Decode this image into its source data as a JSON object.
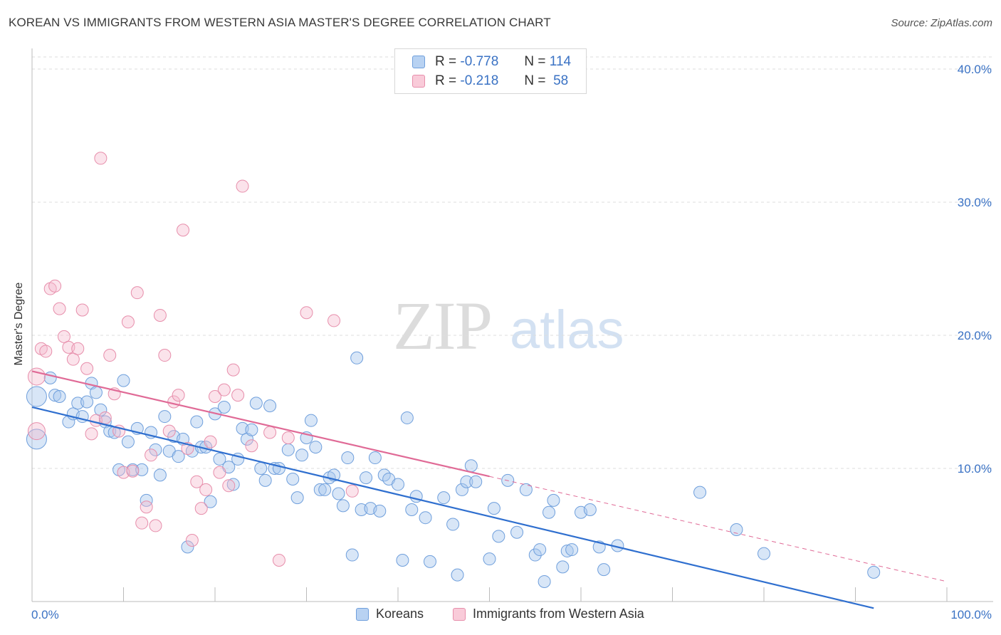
{
  "title": "KOREAN VS IMMIGRANTS FROM WESTERN ASIA MASTER'S DEGREE CORRELATION CHART",
  "source": "Source: ZipAtlas.com",
  "watermark": {
    "zip": "ZIP",
    "atlas": "atlas"
  },
  "legend": {
    "r_label": "R =",
    "n_label": "N =",
    "rows": [
      {
        "r": "-0.778",
        "n": "114"
      },
      {
        "r": "-0.218",
        "n": "58"
      }
    ]
  },
  "chart_data": {
    "type": "scatter",
    "xlabel": "",
    "ylabel": "Master's Degree",
    "xlim": [
      0,
      100
    ],
    "ylim": [
      0,
      40
    ],
    "x_tick_labels": [
      "0.0%",
      "100.0%"
    ],
    "y_ticks": [
      10,
      20,
      30,
      40
    ],
    "y_tick_labels": [
      "10.0%",
      "20.0%",
      "30.0%",
      "40.0%"
    ],
    "grid": true,
    "colors": {
      "koreans": "#a9c8ee",
      "koreans_line": "#2f6fcf",
      "western_asia": "#f5b8cc",
      "western_asia_line": "#e06a96"
    },
    "series": [
      {
        "name": "Koreans",
        "trend": {
          "x": [
            0,
            92
          ],
          "y": [
            14.6,
            -0.5
          ]
        },
        "points": [
          [
            0.5,
            15.4
          ],
          [
            0.5,
            12.2
          ],
          [
            2,
            16.8
          ],
          [
            2.5,
            15.5
          ],
          [
            3,
            15.4
          ],
          [
            4,
            13.5
          ],
          [
            4.5,
            14.1
          ],
          [
            5,
            14.9
          ],
          [
            5.5,
            13.9
          ],
          [
            6,
            15.0
          ],
          [
            6.5,
            16.4
          ],
          [
            7,
            15.7
          ],
          [
            7.5,
            14.4
          ],
          [
            8,
            13.5
          ],
          [
            8.5,
            12.8
          ],
          [
            9,
            12.7
          ],
          [
            9.5,
            9.9
          ],
          [
            10,
            16.6
          ],
          [
            10.5,
            12.0
          ],
          [
            11,
            9.9
          ],
          [
            11.5,
            13.0
          ],
          [
            12,
            9.9
          ],
          [
            12.5,
            7.6
          ],
          [
            13,
            12.7
          ],
          [
            13.5,
            11.4
          ],
          [
            14,
            9.5
          ],
          [
            14.5,
            13.9
          ],
          [
            15,
            11.3
          ],
          [
            15.5,
            12.4
          ],
          [
            16,
            10.9
          ],
          [
            16.5,
            12.2
          ],
          [
            17,
            4.1
          ],
          [
            17.5,
            11.3
          ],
          [
            18,
            13.5
          ],
          [
            18.5,
            11.6
          ],
          [
            19,
            11.6
          ],
          [
            19.5,
            7.5
          ],
          [
            20,
            14.1
          ],
          [
            20.5,
            10.7
          ],
          [
            21,
            14.6
          ],
          [
            21.5,
            10.1
          ],
          [
            22,
            8.8
          ],
          [
            22.5,
            10.7
          ],
          [
            23,
            13.0
          ],
          [
            23.5,
            12.2
          ],
          [
            24,
            12.9
          ],
          [
            24.5,
            14.9
          ],
          [
            25,
            10.0
          ],
          [
            25.5,
            9.1
          ],
          [
            26,
            14.7
          ],
          [
            26.5,
            10.0
          ],
          [
            27,
            10.0
          ],
          [
            28,
            11.4
          ],
          [
            28.5,
            9.2
          ],
          [
            29,
            7.8
          ],
          [
            29.5,
            11.0
          ],
          [
            30,
            12.3
          ],
          [
            30.5,
            13.6
          ],
          [
            31,
            11.6
          ],
          [
            31.5,
            8.4
          ],
          [
            32,
            8.4
          ],
          [
            32.5,
            9.3
          ],
          [
            33,
            9.5
          ],
          [
            33.5,
            8.1
          ],
          [
            34,
            7.2
          ],
          [
            34.5,
            10.8
          ],
          [
            35,
            3.5
          ],
          [
            35.5,
            18.3
          ],
          [
            36,
            6.9
          ],
          [
            36.5,
            9.3
          ],
          [
            37,
            7.0
          ],
          [
            37.5,
            10.8
          ],
          [
            38,
            6.8
          ],
          [
            38.5,
            9.5
          ],
          [
            39,
            9.2
          ],
          [
            40,
            8.8
          ],
          [
            40.5,
            3.1
          ],
          [
            41,
            13.8
          ],
          [
            41.5,
            6.9
          ],
          [
            42,
            7.9
          ],
          [
            43,
            6.3
          ],
          [
            43.5,
            3.0
          ],
          [
            45,
            7.8
          ],
          [
            46,
            5.8
          ],
          [
            46.5,
            2.0
          ],
          [
            47,
            8.4
          ],
          [
            47.5,
            9.0
          ],
          [
            48,
            10.2
          ],
          [
            48.5,
            9.0
          ],
          [
            50,
            3.2
          ],
          [
            50.5,
            7.0
          ],
          [
            51,
            4.9
          ],
          [
            52,
            9.1
          ],
          [
            53,
            5.2
          ],
          [
            54,
            8.4
          ],
          [
            55,
            3.5
          ],
          [
            55.5,
            3.9
          ],
          [
            56,
            1.5
          ],
          [
            56.5,
            6.7
          ],
          [
            57,
            7.6
          ],
          [
            58,
            2.6
          ],
          [
            58.5,
            3.8
          ],
          [
            59,
            3.9
          ],
          [
            60,
            6.7
          ],
          [
            61,
            6.9
          ],
          [
            62,
            4.1
          ],
          [
            62.5,
            2.4
          ],
          [
            64,
            4.2
          ],
          [
            73,
            8.2
          ],
          [
            77,
            5.4
          ],
          [
            80,
            3.6
          ],
          [
            92,
            2.2
          ]
        ]
      },
      {
        "name": "Immigrants from Western Asia",
        "trend": {
          "x": [
            0,
            50
          ],
          "y": [
            17.3,
            9.4
          ]
        },
        "trend_ext": {
          "x": [
            50,
            100
          ],
          "y": [
            9.4,
            1.5
          ]
        },
        "points": [
          [
            0.5,
            16.9
          ],
          [
            0.5,
            12.8
          ],
          [
            1,
            19.0
          ],
          [
            1.5,
            18.8
          ],
          [
            2,
            23.5
          ],
          [
            2.5,
            23.7
          ],
          [
            3,
            22.0
          ],
          [
            3.5,
            19.9
          ],
          [
            4,
            19.1
          ],
          [
            4.5,
            18.2
          ],
          [
            5,
            19.0
          ],
          [
            5.5,
            21.9
          ],
          [
            6,
            17.5
          ],
          [
            6.5,
            12.6
          ],
          [
            7,
            13.6
          ],
          [
            7.5,
            33.3
          ],
          [
            8,
            13.8
          ],
          [
            8.5,
            18.5
          ],
          [
            9,
            15.6
          ],
          [
            9.5,
            12.8
          ],
          [
            10,
            9.7
          ],
          [
            10.5,
            21.0
          ],
          [
            11,
            9.8
          ],
          [
            11.5,
            23.2
          ],
          [
            12,
            5.9
          ],
          [
            12.5,
            7.1
          ],
          [
            13,
            11.0
          ],
          [
            13.5,
            5.7
          ],
          [
            14,
            21.5
          ],
          [
            14.5,
            18.5
          ],
          [
            15,
            12.8
          ],
          [
            15.5,
            15.0
          ],
          [
            16,
            15.5
          ],
          [
            16.5,
            27.9
          ],
          [
            17,
            11.5
          ],
          [
            17.5,
            4.6
          ],
          [
            18,
            9.0
          ],
          [
            18.5,
            7.0
          ],
          [
            19,
            8.4
          ],
          [
            19.5,
            12.0
          ],
          [
            20,
            15.4
          ],
          [
            20.5,
            9.7
          ],
          [
            21,
            15.9
          ],
          [
            21.5,
            8.7
          ],
          [
            22,
            17.4
          ],
          [
            22.5,
            15.5
          ],
          [
            23,
            31.2
          ],
          [
            24,
            11.7
          ],
          [
            26,
            12.7
          ],
          [
            27,
            3.1
          ],
          [
            28,
            12.3
          ],
          [
            30,
            21.7
          ],
          [
            33,
            21.1
          ],
          [
            35,
            8.3
          ]
        ]
      }
    ]
  }
}
